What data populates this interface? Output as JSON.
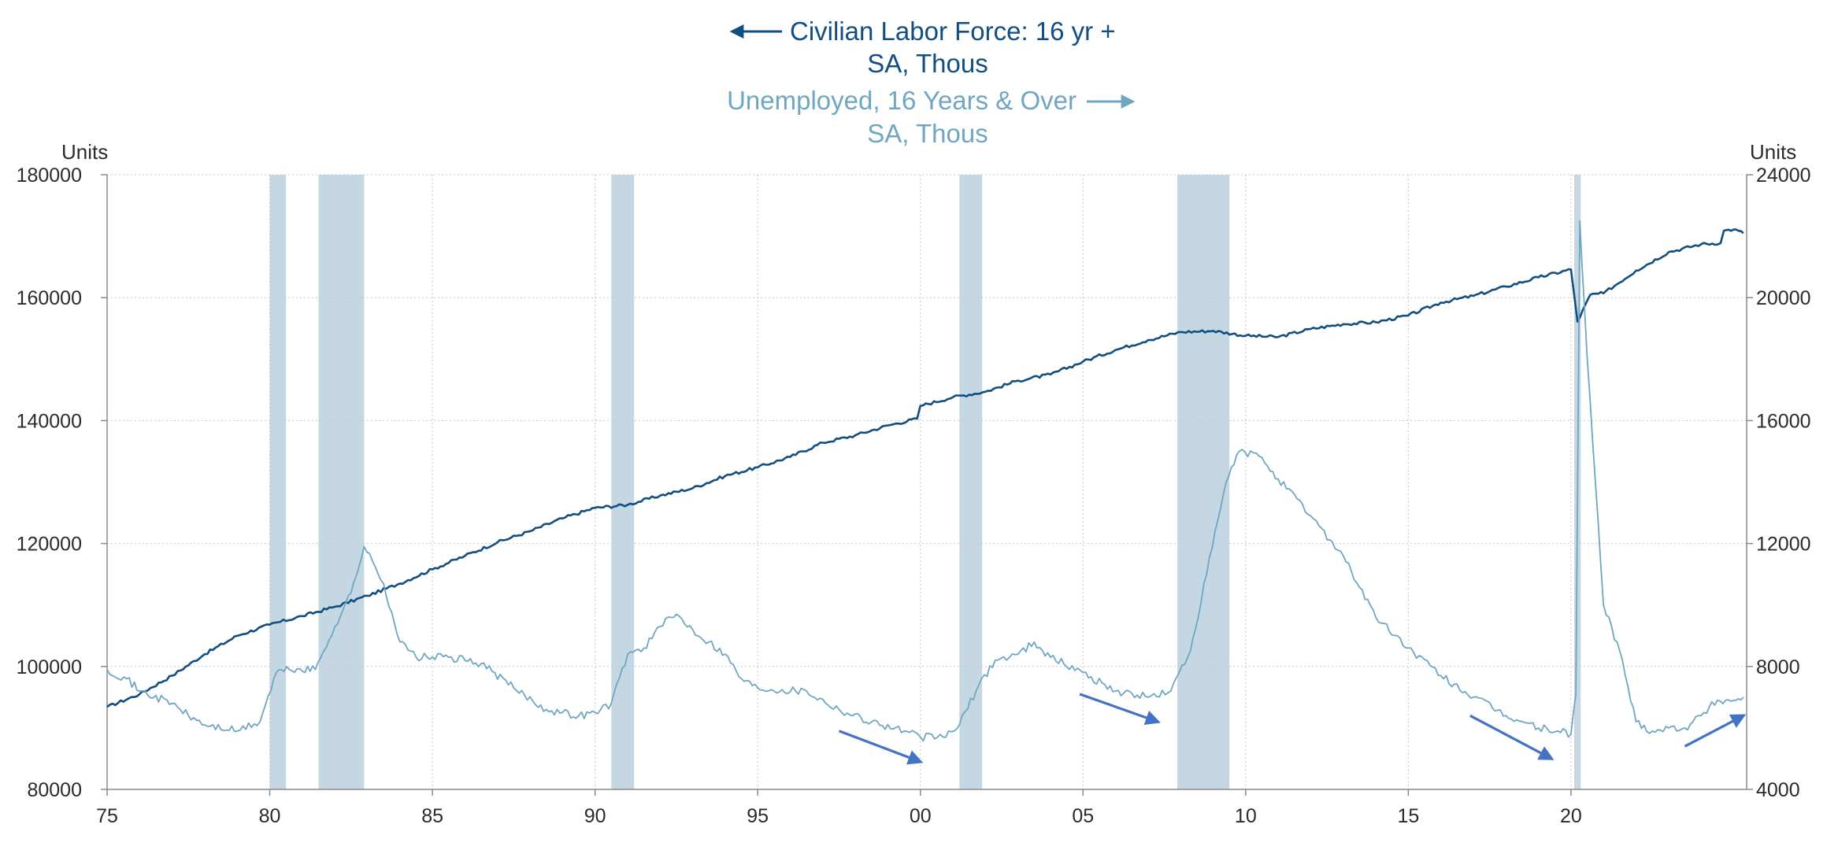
{
  "colors": {
    "labor_force": "#124e7f",
    "unemployed": "#6fa6c2",
    "recession": "#c5d7e2",
    "trend_arrow": "#4472c4",
    "grid": "#c8c8c8",
    "axis": "#8a8a8a"
  },
  "legend": {
    "series1_line1": "Civilian Labor Force: 16 yr +",
    "series1_line2": "SA, Thous",
    "series2_line1": "Unemployed, 16 Years & Over",
    "series2_line2": "SA, Thous"
  },
  "chart_data": {
    "type": "line",
    "left_axis": {
      "label": "Units",
      "range": [
        80000,
        180000
      ],
      "ticks": [
        "80000",
        "100000",
        "120000",
        "140000",
        "160000",
        "180000"
      ]
    },
    "right_axis": {
      "label": "Units",
      "range": [
        4000,
        24000
      ],
      "ticks": [
        "4000",
        "8000",
        "12000",
        "16000",
        "20000",
        "24000"
      ]
    },
    "x_axis": {
      "range": [
        1975,
        2025.4
      ],
      "tick_years": [
        1975,
        1980,
        1985,
        1990,
        1995,
        2000,
        2005,
        2010,
        2015,
        2020
      ],
      "tick_labels": [
        "75",
        "80",
        "85",
        "90",
        "95",
        "00",
        "05",
        "10",
        "15",
        "20"
      ]
    },
    "grid": "dotted",
    "recessions": [
      [
        1980.0,
        1980.5
      ],
      [
        1981.5,
        1982.9
      ],
      [
        1990.5,
        1991.2
      ],
      [
        2001.2,
        2001.9
      ],
      [
        2007.9,
        2009.5
      ],
      [
        2020.1,
        2020.3
      ]
    ],
    "series": [
      {
        "name": "Civilian Labor Force: 16 yr +",
        "axis": "left",
        "points": [
          [
            1975,
            93400
          ],
          [
            1976,
            95500
          ],
          [
            1977,
            98500
          ],
          [
            1978,
            102000
          ],
          [
            1979,
            105000
          ],
          [
            1980,
            106800
          ],
          [
            1981,
            108200
          ],
          [
            1982,
            109700
          ],
          [
            1983,
            111500
          ],
          [
            1984,
            113500
          ],
          [
            1985,
            115800
          ],
          [
            1986,
            118000
          ],
          [
            1987,
            120200
          ],
          [
            1988,
            122000
          ],
          [
            1989,
            124100
          ],
          [
            1990,
            125800
          ],
          [
            1991,
            126300
          ],
          [
            1992,
            127800
          ],
          [
            1993,
            129000
          ],
          [
            1994,
            131000
          ],
          [
            1995,
            132400
          ],
          [
            1996,
            134100
          ],
          [
            1997,
            136400
          ],
          [
            1998,
            137600
          ],
          [
            1999,
            139200
          ],
          [
            1999.9,
            140300
          ],
          [
            2000.0,
            142400
          ],
          [
            2001,
            143800
          ],
          [
            2002,
            144700
          ],
          [
            2003,
            146500
          ],
          [
            2004,
            147500
          ],
          [
            2005,
            149600
          ],
          [
            2006,
            151500
          ],
          [
            2007,
            153100
          ],
          [
            2008,
            154400
          ],
          [
            2009,
            154600
          ],
          [
            2010,
            153800
          ],
          [
            2011,
            153600
          ],
          [
            2012,
            154900
          ],
          [
            2013,
            155700
          ],
          [
            2014,
            156000
          ],
          [
            2015,
            157100
          ],
          [
            2016,
            159200
          ],
          [
            2017,
            160300
          ],
          [
            2018,
            161800
          ],
          [
            2019,
            163300
          ],
          [
            2020.0,
            164600
          ],
          [
            2020.2,
            156100
          ],
          [
            2020.6,
            160500
          ],
          [
            2021,
            160700
          ],
          [
            2022,
            164400
          ],
          [
            2023,
            167400
          ],
          [
            2024,
            168700
          ],
          [
            2024.6,
            168900
          ],
          [
            2024.7,
            170900
          ],
          [
            2025.0,
            171100
          ],
          [
            2025.3,
            170500
          ]
        ]
      },
      {
        "name": "Unemployed, 16 Years & Over",
        "axis": "right",
        "points": [
          [
            1975.0,
            7900
          ],
          [
            1975.6,
            7600
          ],
          [
            1976.0,
            7200
          ],
          [
            1977.0,
            6800
          ],
          [
            1977.5,
            6400
          ],
          [
            1978.0,
            6100
          ],
          [
            1979.0,
            5900
          ],
          [
            1979.7,
            6200
          ],
          [
            1980.2,
            7800
          ],
          [
            1980.6,
            7900
          ],
          [
            1981.4,
            7900
          ],
          [
            1982.0,
            9300
          ],
          [
            1982.5,
            10400
          ],
          [
            1982.9,
            11900
          ],
          [
            1983.5,
            10700
          ],
          [
            1984.0,
            8800
          ],
          [
            1984.5,
            8300
          ],
          [
            1985.5,
            8300
          ],
          [
            1986.5,
            8100
          ],
          [
            1987.5,
            7300
          ],
          [
            1988.5,
            6600
          ],
          [
            1989.5,
            6400
          ],
          [
            1990.0,
            6500
          ],
          [
            1990.5,
            6800
          ],
          [
            1991.0,
            8400
          ],
          [
            1991.5,
            8600
          ],
          [
            1992.0,
            9300
          ],
          [
            1992.5,
            9700
          ],
          [
            1993.0,
            9200
          ],
          [
            1993.5,
            8800
          ],
          [
            1994.0,
            8400
          ],
          [
            1994.5,
            7600
          ],
          [
            1995.0,
            7300
          ],
          [
            1996.5,
            7200
          ],
          [
            1997.5,
            6600
          ],
          [
            1998.5,
            6200
          ],
          [
            1999.5,
            5900
          ],
          [
            2000.0,
            5700
          ],
          [
            2000.7,
            5700
          ],
          [
            2001.2,
            6100
          ],
          [
            2001.8,
            7400
          ],
          [
            2002.3,
            8200
          ],
          [
            2003.0,
            8400
          ],
          [
            2003.5,
            8800
          ],
          [
            2004.0,
            8300
          ],
          [
            2005.0,
            7800
          ],
          [
            2006.0,
            7200
          ],
          [
            2007.0,
            7000
          ],
          [
            2007.7,
            7200
          ],
          [
            2008.3,
            8500
          ],
          [
            2008.8,
            11000
          ],
          [
            2009.4,
            14000
          ],
          [
            2009.8,
            15000
          ],
          [
            2010.5,
            14800
          ],
          [
            2011.0,
            14100
          ],
          [
            2012.0,
            12900
          ],
          [
            2013.0,
            11600
          ],
          [
            2014.0,
            9600
          ],
          [
            2015.0,
            8600
          ],
          [
            2016.0,
            7700
          ],
          [
            2017.0,
            7000
          ],
          [
            2018.0,
            6400
          ],
          [
            2019.0,
            6000
          ],
          [
            2019.6,
            5900
          ],
          [
            2020.0,
            5800
          ],
          [
            2020.15,
            7100
          ],
          [
            2020.27,
            22500
          ],
          [
            2020.5,
            18000
          ],
          [
            2021.0,
            10000
          ],
          [
            2021.5,
            8500
          ],
          [
            2022.0,
            6200
          ],
          [
            2022.5,
            5900
          ],
          [
            2023.0,
            6000
          ],
          [
            2023.5,
            6000
          ],
          [
            2024.0,
            6400
          ],
          [
            2024.5,
            6900
          ],
          [
            2025.0,
            6900
          ],
          [
            2025.3,
            7000
          ]
        ]
      }
    ],
    "annotations": [
      {
        "type": "arrow",
        "from": [
          1997.5,
          5900
        ],
        "to": [
          2000.0,
          4900
        ]
      },
      {
        "type": "arrow",
        "from": [
          2004.9,
          7100
        ],
        "to": [
          2007.3,
          6200
        ]
      },
      {
        "type": "arrow",
        "from": [
          2016.9,
          6400
        ],
        "to": [
          2019.4,
          5000
        ]
      },
      {
        "type": "arrow",
        "from": [
          2023.5,
          5400
        ],
        "to": [
          2025.3,
          6400
        ]
      }
    ]
  }
}
